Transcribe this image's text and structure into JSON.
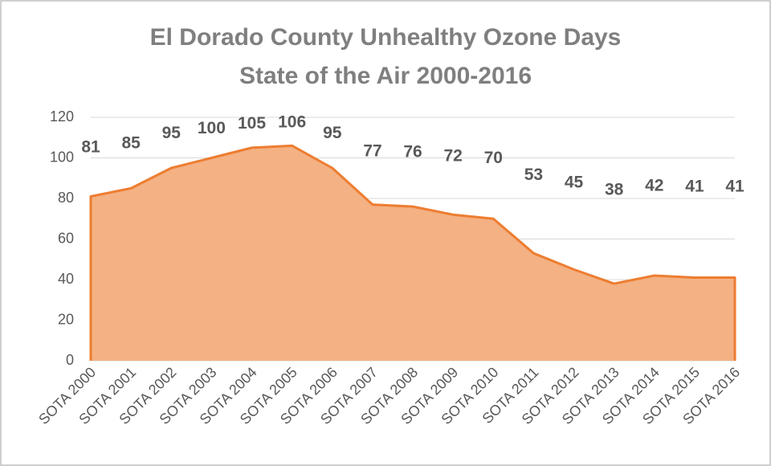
{
  "chart_data": {
    "type": "area",
    "title": [
      "El Dorado County Unhealthy Ozone Days",
      "State of the Air 2000-2016"
    ],
    "categories": [
      "SOTA 2000",
      "SOTA 2001",
      "SOTA 2002",
      "SOTA 2003",
      "SOTA 2004",
      "SOTA 2005",
      "SOTA 2006",
      "SOTA 2007",
      "SOTA 2008",
      "SOTA 2009",
      "SOTA 2010",
      "SOTA 2011",
      "SOTA 2012",
      "SOTA 2013",
      "SOTA 2014",
      "SOTA 2015",
      "SOTA 2016"
    ],
    "values": [
      81,
      85,
      95,
      100,
      105,
      106,
      95,
      77,
      76,
      72,
      70,
      53,
      45,
      38,
      42,
      41,
      41
    ],
    "color": "#f4b183",
    "line_color": "#ed7d31",
    "ylim": [
      0,
      120
    ],
    "yticks": [
      0,
      20,
      40,
      60,
      80,
      100,
      120
    ],
    "grid": true
  }
}
